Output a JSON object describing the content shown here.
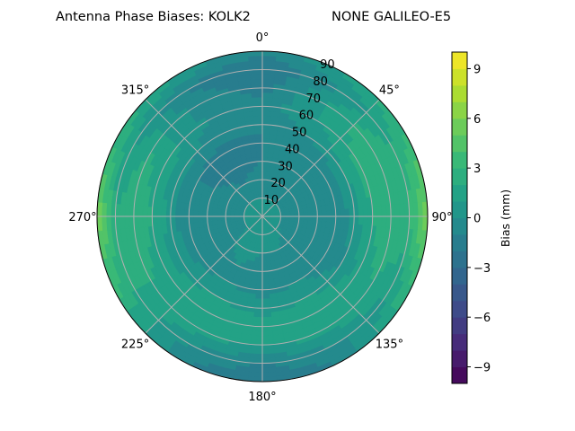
{
  "chart_data": {
    "type": "heatmap",
    "projection": "polar",
    "title_left": "Antenna Phase Biases: KOLK2",
    "title_right": "NONE GALILEO-E5",
    "angle_tick_labels": [
      "0°",
      "45°",
      "90°",
      "135°",
      "180°",
      "225°",
      "270°",
      "315°"
    ],
    "radial_tick_labels": [
      "10",
      "20",
      "30",
      "40",
      "50",
      "60",
      "70",
      "80",
      "90"
    ],
    "radial_range": [
      0,
      90
    ],
    "theta_zero": "north",
    "theta_direction": "clockwise",
    "grid": true,
    "azimuth": [
      0,
      30,
      60,
      90,
      120,
      150,
      180,
      210,
      240,
      270,
      300,
      330
    ],
    "zenith": [
      0,
      10,
      20,
      30,
      40,
      50,
      60,
      70,
      80,
      90
    ],
    "values": [
      [
        0,
        0,
        -0.5,
        -1,
        -1,
        -1,
        -0.5,
        -1.5,
        -2,
        -1
      ],
      [
        0,
        0,
        -0.5,
        -1,
        -1,
        0,
        1,
        1,
        0,
        1
      ],
      [
        0,
        0,
        -1,
        -1,
        -1,
        1,
        2.5,
        3,
        2,
        3
      ],
      [
        0,
        0,
        -1,
        -1,
        -1,
        0.5,
        2,
        3,
        3,
        6
      ],
      [
        0,
        0,
        -1,
        -1,
        -1,
        0,
        1.5,
        2,
        1,
        3
      ],
      [
        0,
        0.5,
        0,
        -0.5,
        0,
        1,
        2,
        1.5,
        0,
        -1
      ],
      [
        0,
        0.5,
        0,
        -0.5,
        -0.5,
        0.5,
        1.5,
        1,
        -1,
        -2
      ],
      [
        0,
        0.5,
        0.5,
        0,
        0,
        1,
        2,
        1.5,
        0,
        -1
      ],
      [
        0,
        0,
        -0.5,
        -1,
        -0.5,
        0.5,
        1.5,
        2,
        2,
        3
      ],
      [
        0,
        0,
        -1,
        -1,
        -1,
        0.5,
        2,
        3,
        2,
        6
      ],
      [
        0,
        0,
        -0.5,
        -1,
        -1,
        0.5,
        1.5,
        2,
        1,
        3
      ],
      [
        0,
        0,
        -1,
        -1.5,
        -1.5,
        -0.5,
        0,
        -0.5,
        -1,
        1
      ]
    ],
    "colorbar": {
      "label": "Bias (mm)",
      "range": [
        -10,
        10
      ],
      "level_step": 1,
      "colormap": "viridis",
      "tick_labels": [
        "−9",
        "−6",
        "−3",
        "0",
        "3",
        "6",
        "9"
      ],
      "ticks": [
        -9,
        -6,
        -3,
        0,
        3,
        6,
        9
      ]
    }
  }
}
